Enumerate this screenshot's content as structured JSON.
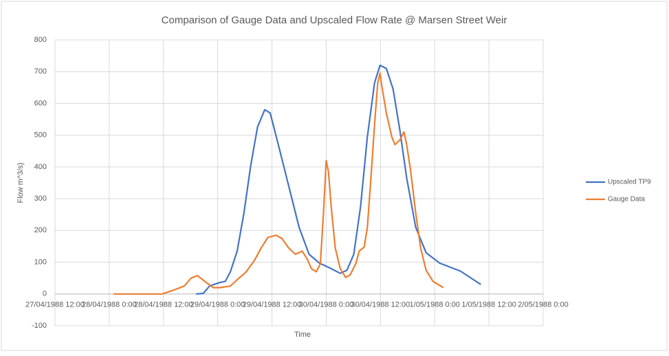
{
  "chart_data": {
    "type": "line",
    "title": "Comparison of Gauge Data and Upscaled Flow Rate @ Marsen Street Weir",
    "x_label": "Time",
    "y_label": "Flow m^3/s)",
    "xlim": [
      0,
      108
    ],
    "ylim": [
      -100,
      800
    ],
    "xticks": [
      {
        "value": 0,
        "label": "27/04/1988 12:00"
      },
      {
        "value": 12,
        "label": "28/04/1988 0:00"
      },
      {
        "value": 24,
        "label": "28/04/1988 12:00"
      },
      {
        "value": 36,
        "label": "29/04/1988 0:00"
      },
      {
        "value": 48,
        "label": "29/04/1988 12:00"
      },
      {
        "value": 60,
        "label": "30/04/1988 0:00"
      },
      {
        "value": 72,
        "label": "30/04/1988 12:00"
      },
      {
        "value": 84,
        "label": "1/05/1988 0:00"
      },
      {
        "value": 96,
        "label": "1/05/1988 12:00"
      },
      {
        "value": 108,
        "label": "2/05/1988 0:00"
      }
    ],
    "yticks": [
      -100,
      0,
      100,
      200,
      300,
      400,
      500,
      600,
      700,
      800
    ],
    "grid": true,
    "legend": "right",
    "series": [
      {
        "name": "Upscaled TP9",
        "color": "#4472c4",
        "x": [
          31.2,
          32.8,
          34.2,
          36.2,
          37.7,
          38.8,
          40.3,
          41.8,
          43.3,
          44.8,
          46.4,
          47.6,
          49.4,
          51.7,
          54.0,
          56.2,
          58.5,
          60.8,
          63.1,
          64.6,
          66.1,
          67.6,
          69.1,
          70.7,
          71.9,
          73.3,
          74.8,
          76.3,
          77.8,
          79.8,
          82.1,
          85.1,
          89.7,
          94.2
        ],
        "values": [
          0,
          2,
          25,
          35,
          40,
          70,
          135,
          255,
          405,
          525,
          580,
          570,
          470,
          340,
          210,
          125,
          97,
          82,
          65,
          75,
          125,
          275,
          495,
          665,
          720,
          710,
          645,
          515,
          365,
          210,
          130,
          97,
          72,
          30
        ]
      },
      {
        "name": "Gauge Data",
        "color": "#ed7d31",
        "x": [
          12.9,
          23.6,
          25.8,
          28.6,
          30.1,
          31.5,
          33.1,
          35.0,
          36.5,
          38.8,
          40.3,
          42.2,
          44.1,
          45.6,
          47.1,
          48.9,
          50.2,
          51.7,
          53.2,
          54.7,
          55.8,
          56.7,
          57.8,
          58.7,
          59.4,
          60.0,
          60.5,
          61.1,
          62.0,
          63.1,
          64.3,
          65.3,
          66.6,
          67.3,
          68.4,
          69.1,
          69.9,
          70.7,
          71.4,
          71.9,
          72.3,
          73.3,
          74.5,
          75.2,
          76.3,
          77.2,
          77.8,
          78.7,
          79.8,
          80.9,
          82.1,
          83.6,
          85.9
        ],
        "values": [
          0,
          0,
          10,
          25,
          50,
          58,
          40,
          20,
          20,
          25,
          45,
          68,
          105,
          145,
          178,
          185,
          175,
          145,
          125,
          135,
          110,
          80,
          70,
          95,
          255,
          420,
          385,
          275,
          145,
          80,
          52,
          60,
          97,
          135,
          148,
          210,
          365,
          535,
          665,
          695,
          655,
          570,
          495,
          470,
          485,
          510,
          470,
          385,
          255,
          145,
          75,
          40,
          20
        ]
      }
    ]
  }
}
